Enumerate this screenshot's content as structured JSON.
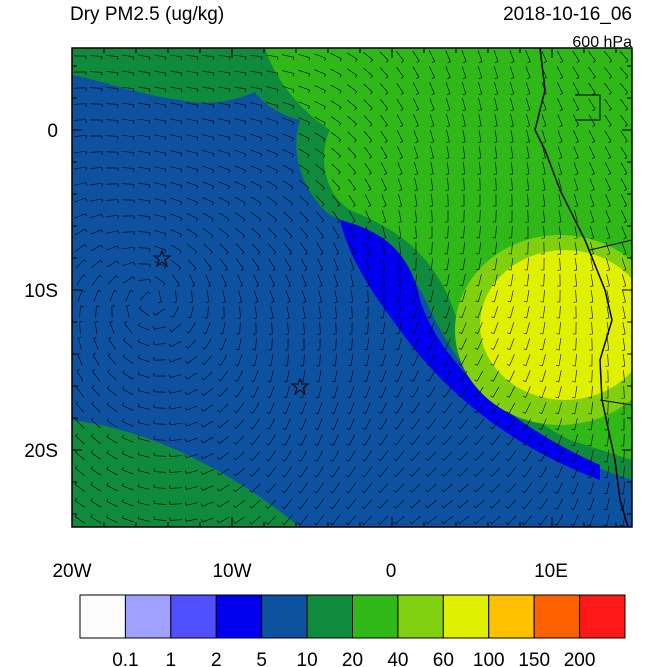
{
  "title": "Dry PM2.5 (ug/kg)",
  "datetime": "2018-10-16_06",
  "level": "600 hPa",
  "map": {
    "lat_labels": [
      "0",
      "10S",
      "20S"
    ],
    "lon_labels": [
      "20W",
      "10W",
      "0",
      "10E"
    ]
  },
  "colorbar": {
    "labels": [
      "0.1",
      "1",
      "2",
      "5",
      "10",
      "20",
      "40",
      "60",
      "100",
      "150",
      "200"
    ],
    "colors": [
      "#fcfcfc",
      "#a0a0ff",
      "#5050ff",
      "#0000ee",
      "#0c52a0",
      "#108a3c",
      "#30b818",
      "#80d010",
      "#e0f000",
      "#ffc000",
      "#ff6000",
      "#ff1818"
    ]
  }
}
